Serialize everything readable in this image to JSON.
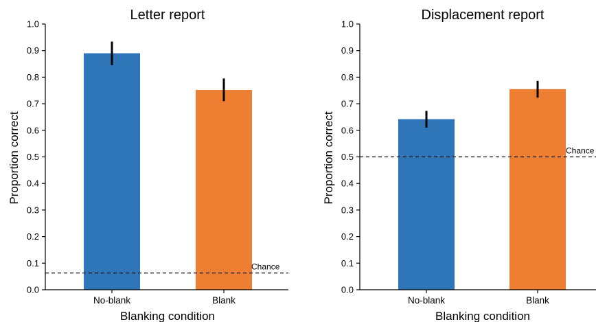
{
  "colors": {
    "no_blank": "#2f76b8",
    "blank": "#ee7f32"
  },
  "chart_data": [
    {
      "type": "bar",
      "title": "Letter report",
      "xlabel": "Blanking condition",
      "ylabel": "Proportion correct",
      "ylim": [
        0,
        1.0
      ],
      "yticks": [
        "0.0",
        "0.1",
        "0.2",
        "0.3",
        "0.4",
        "0.5",
        "0.6",
        "0.7",
        "0.8",
        "0.9",
        "1.0"
      ],
      "categories": [
        "No-blank",
        "Blank"
      ],
      "values": [
        0.89,
        0.752
      ],
      "error_low": [
        0.845,
        0.71
      ],
      "error_high": [
        0.934,
        0.795
      ],
      "chance": {
        "value": 0.063,
        "label": "Chance"
      },
      "grid": false
    },
    {
      "type": "bar",
      "title": "Displacement report",
      "xlabel": "Blanking condition",
      "ylabel": "Proportion correct",
      "ylim": [
        0,
        1.0
      ],
      "yticks": [
        "0.0",
        "0.1",
        "0.2",
        "0.3",
        "0.4",
        "0.5",
        "0.6",
        "0.7",
        "0.8",
        "0.9",
        "1.0"
      ],
      "categories": [
        "No-blank",
        "Blank"
      ],
      "values": [
        0.642,
        0.755
      ],
      "error_low": [
        0.61,
        0.723
      ],
      "error_high": [
        0.673,
        0.786
      ],
      "chance": {
        "value": 0.5,
        "label": "Chance"
      },
      "grid": false
    }
  ]
}
